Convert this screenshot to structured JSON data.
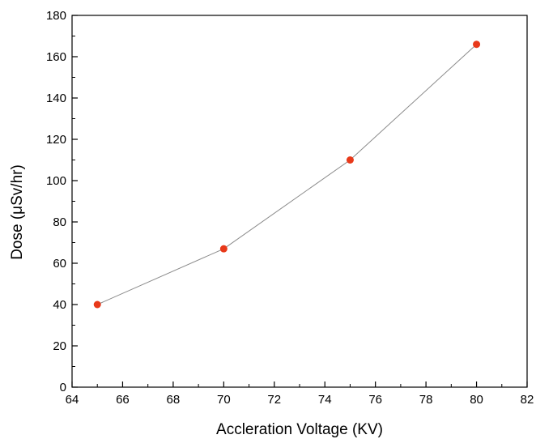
{
  "chart_data": {
    "type": "line",
    "title": "",
    "xlabel": "Accleration Voltage (KV)",
    "ylabel": "Dose (μSv/hr)",
    "xlim": [
      64,
      82
    ],
    "ylim": [
      0,
      180
    ],
    "x_ticks": [
      64,
      66,
      68,
      70,
      72,
      74,
      76,
      78,
      80,
      82
    ],
    "x_tick_labels": [
      "64",
      "66",
      "68",
      "70",
      "72",
      "74",
      "76",
      "78",
      "80",
      "82"
    ],
    "y_ticks": [
      0,
      20,
      40,
      60,
      80,
      100,
      120,
      140,
      160,
      180
    ],
    "y_tick_labels": [
      "0",
      "20",
      "40",
      "60",
      "80",
      "100",
      "120",
      "140",
      "160",
      "180"
    ],
    "grid": false,
    "legend": "none",
    "series": [
      {
        "x": [
          65,
          70,
          75,
          80
        ],
        "y": [
          40,
          67,
          110,
          166
        ],
        "line_color": "#8a8a8a",
        "marker_color": "#e8391a"
      }
    ]
  }
}
